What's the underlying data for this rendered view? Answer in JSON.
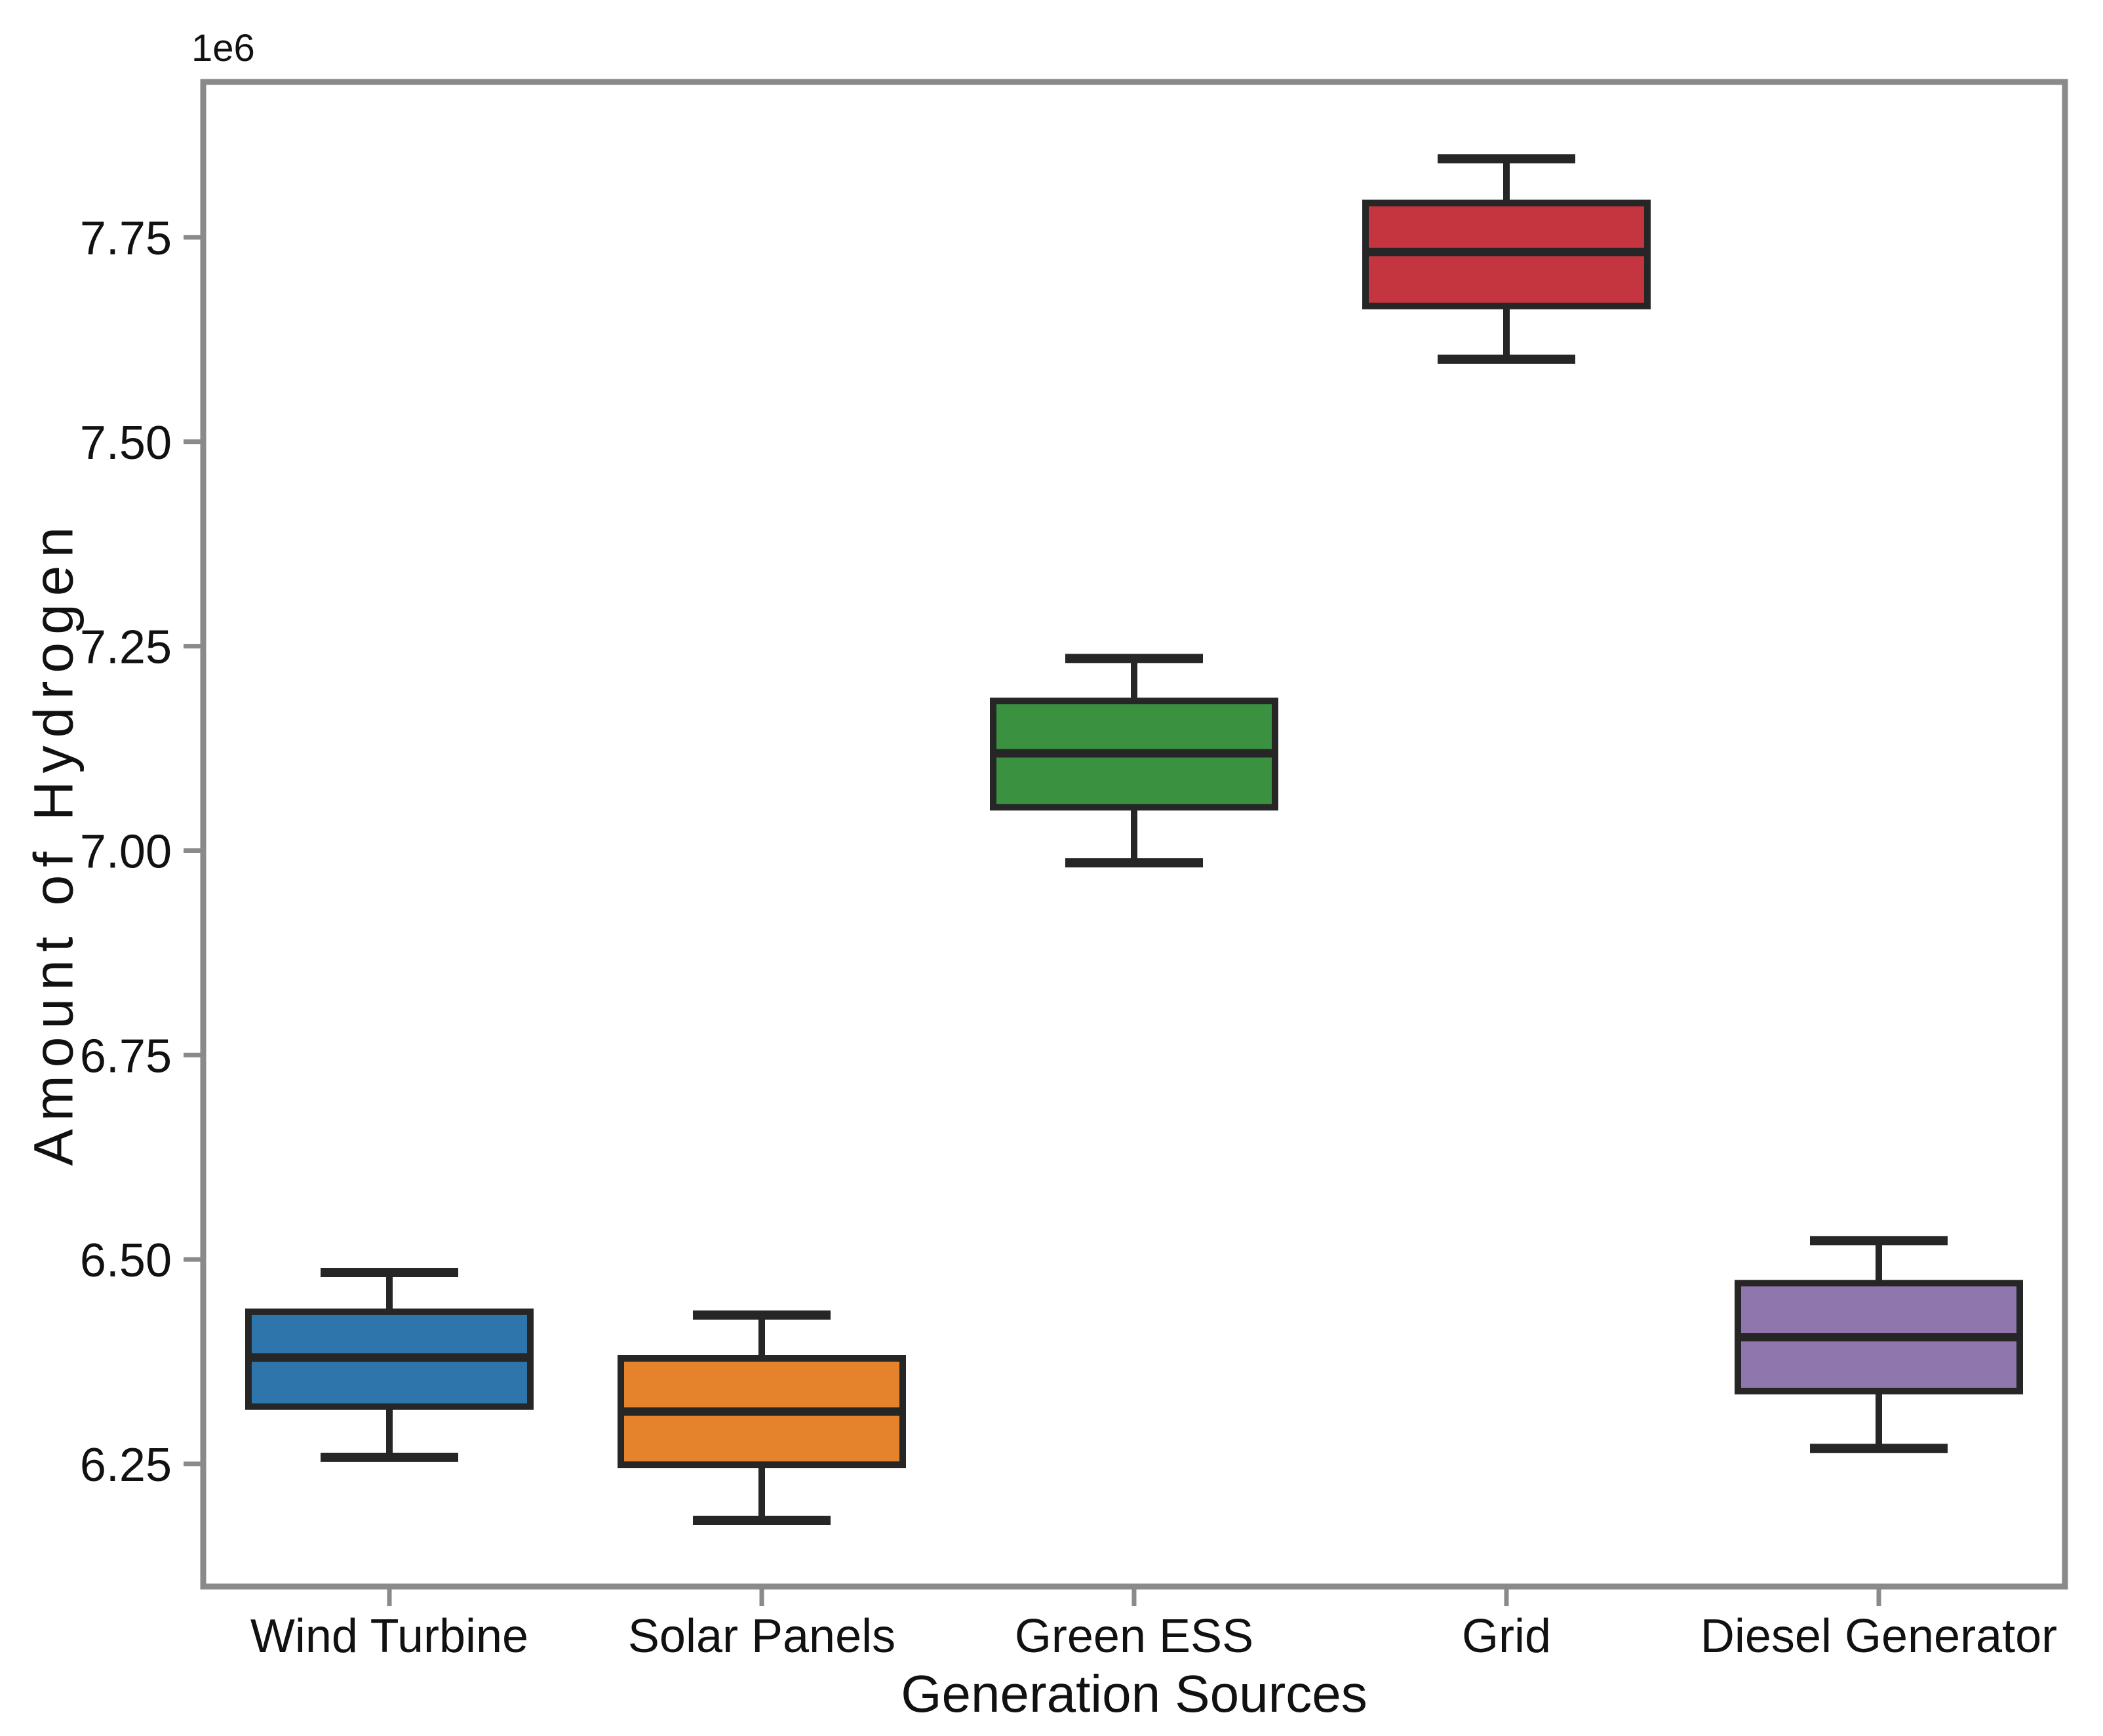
{
  "chart_data": {
    "type": "boxplot",
    "title": "",
    "xlabel": "Generation Sources",
    "ylabel": "Amount of Hydrogen",
    "y_offset_label": "1e6",
    "y_unit_multiplier": 1000000,
    "ylim": [
      6.1,
      7.94
    ],
    "yticks": [
      6.25,
      6.5,
      6.75,
      7.0,
      7.25,
      7.5,
      7.75
    ],
    "grid": false,
    "legend_position": "none",
    "background_color": "#ffffff",
    "spine_color": "#8a8a8a",
    "line_color": "#262626",
    "categories": [
      "Wind Turbine",
      "Solar Panels",
      "Green ESS",
      "Grid",
      "Diesel Generator"
    ],
    "series": [
      {
        "category": "Wind Turbine",
        "color": "#2e75ac",
        "whisker_low": 6.258,
        "q1": 6.32,
        "median": 6.38,
        "q3": 6.436,
        "whisker_high": 6.484
      },
      {
        "category": "Solar Panels",
        "color": "#e5832c",
        "whisker_low": 6.181,
        "q1": 6.249,
        "median": 6.314,
        "q3": 6.379,
        "whisker_high": 6.432
      },
      {
        "category": "Green ESS",
        "color": "#3a9140",
        "whisker_low": 6.985,
        "q1": 7.053,
        "median": 7.119,
        "q3": 7.183,
        "whisker_high": 7.235
      },
      {
        "category": "Grid",
        "color": "#c4353f",
        "whisker_low": 7.601,
        "q1": 7.666,
        "median": 7.732,
        "q3": 7.792,
        "whisker_high": 7.846
      },
      {
        "category": "Diesel Generator",
        "color": "#8f77ae",
        "whisker_low": 6.269,
        "q1": 6.339,
        "median": 6.405,
        "q3": 6.471,
        "whisker_high": 6.523
      }
    ]
  }
}
